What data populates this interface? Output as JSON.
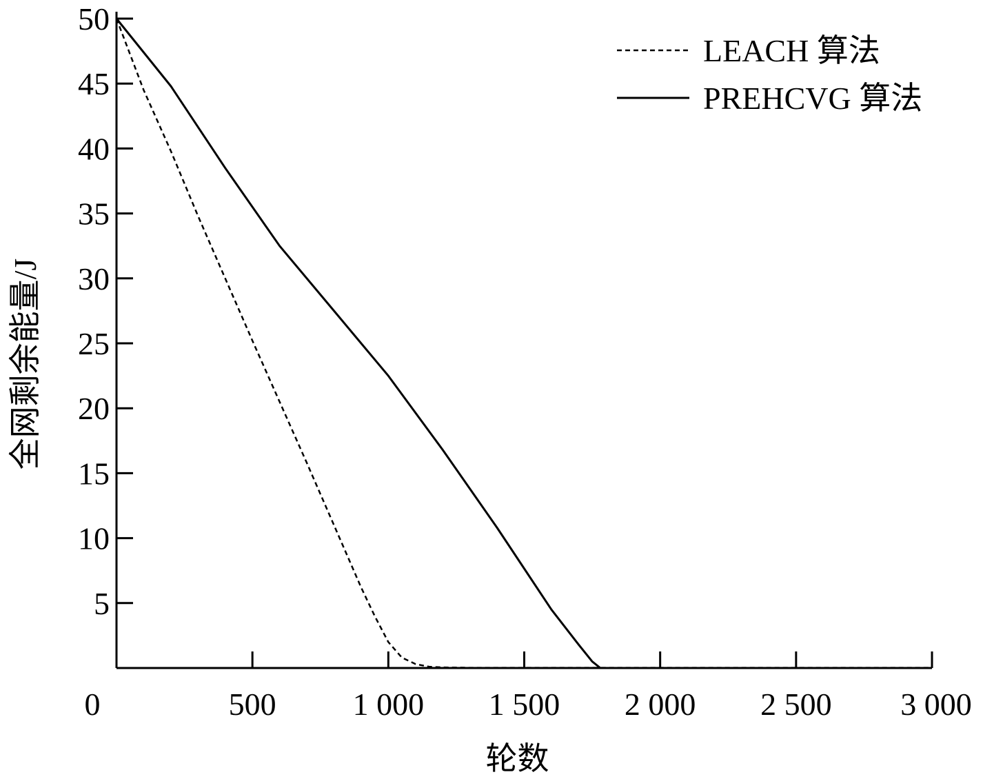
{
  "chart_data": {
    "type": "line",
    "title": "",
    "xlabel": "轮数",
    "ylabel": "全网剩余能量/J",
    "xlim": [
      0,
      3000
    ],
    "ylim": [
      0,
      50
    ],
    "x_ticks": [
      0,
      500,
      1000,
      1500,
      2000,
      2500,
      3000
    ],
    "x_tick_labels": [
      "0",
      "500",
      "1 000",
      "1 500",
      "2 000",
      "2 500",
      "3 000"
    ],
    "y_ticks": [
      5,
      10,
      15,
      20,
      25,
      30,
      35,
      40,
      45,
      50
    ],
    "y_tick_labels": [
      "5",
      "10",
      "15",
      "20",
      "25",
      "30",
      "35",
      "40",
      "45",
      "50"
    ],
    "grid": false,
    "legend_position": "top-right",
    "series": [
      {
        "name": "LEACH 算法",
        "style": "dashed",
        "color": "#000000",
        "x": [
          0,
          100,
          200,
          300,
          400,
          500,
          600,
          700,
          800,
          900,
          950,
          1000,
          1050,
          1100,
          1150,
          1200,
          1300,
          1500,
          2000,
          2500,
          3000
        ],
        "y": [
          50,
          44.5,
          39.8,
          34.8,
          30.0,
          25.2,
          20.5,
          15.8,
          11.0,
          6.2,
          4.0,
          2.0,
          0.8,
          0.3,
          0.1,
          0.05,
          0.02,
          0.02,
          0.02,
          0.02,
          0.02
        ]
      },
      {
        "name": "PREHCVG 算法",
        "style": "solid",
        "color": "#000000",
        "x": [
          0,
          200,
          400,
          600,
          800,
          1000,
          1200,
          1400,
          1600,
          1700,
          1750,
          1780,
          1800,
          2000,
          2500,
          3000
        ],
        "y": [
          50,
          44.8,
          38.5,
          32.5,
          27.5,
          22.5,
          16.8,
          10.8,
          4.5,
          1.8,
          0.5,
          0.0,
          0.0,
          0.0,
          0.0,
          0.0
        ]
      }
    ]
  }
}
